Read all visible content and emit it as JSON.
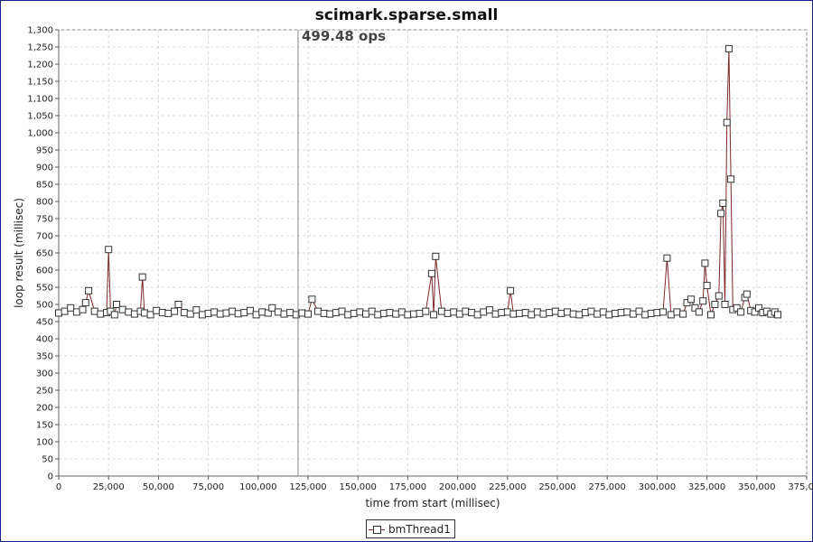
{
  "chart_data": {
    "type": "line",
    "title": "scimark.sparse.small",
    "xlabel": "time from start (millisec)",
    "ylabel": "loop result (millisec)",
    "xlim": [
      0,
      375000
    ],
    "ylim": [
      0,
      1300
    ],
    "x_ticks": [
      "0",
      "25,000",
      "50,000",
      "75,000",
      "100,000",
      "125,000",
      "150,000",
      "175,000",
      "200,000",
      "225,000",
      "250,000",
      "275,000",
      "300,000",
      "325,000",
      "350,000",
      "375,000"
    ],
    "y_ticks": [
      "0",
      "50",
      "100",
      "150",
      "200",
      "250",
      "300",
      "350",
      "400",
      "450",
      "500",
      "550",
      "600",
      "650",
      "700",
      "750",
      "800",
      "850",
      "900",
      "950",
      "1,000",
      "1,050",
      "1,100",
      "1,150",
      "1,200",
      "1,250",
      "1,300"
    ],
    "grid": true,
    "legend_position": "bottom",
    "marker_line": {
      "x": 120000,
      "label": "499.48 ops"
    },
    "series_color": "#7a2a2a",
    "series": [
      {
        "name": "bmThread1",
        "x": [
          0,
          3000,
          6000,
          9000,
          12000,
          13500,
          15000,
          18000,
          21000,
          24000,
          25000,
          26000,
          28000,
          29000,
          32000,
          35000,
          38000,
          41000,
          42000,
          43000,
          46000,
          49000,
          52000,
          55000,
          58000,
          60000,
          63000,
          66000,
          69000,
          72000,
          75000,
          78000,
          81000,
          84000,
          87000,
          90000,
          93000,
          96000,
          99000,
          102000,
          105000,
          107000,
          110000,
          113000,
          116000,
          119000,
          122000,
          125000,
          127000,
          130000,
          133000,
          136000,
          139000,
          142000,
          145000,
          148000,
          151000,
          154000,
          157000,
          160000,
          163000,
          166000,
          169000,
          172000,
          175000,
          178000,
          181000,
          184000,
          187000,
          188000,
          189000,
          192000,
          195000,
          198000,
          201000,
          204000,
          207000,
          210000,
          213000,
          216000,
          219000,
          222000,
          225000,
          226500,
          228000,
          231000,
          234000,
          237000,
          240000,
          243000,
          246000,
          249000,
          252000,
          255000,
          258000,
          261000,
          264000,
          267000,
          270000,
          273000,
          276000,
          279000,
          282000,
          285000,
          288000,
          291000,
          294000,
          297000,
          300000,
          303000,
          305000,
          307000,
          310000,
          313000,
          315000,
          317000,
          319000,
          321000,
          323000,
          324000,
          325000,
          327000,
          329000,
          331000,
          332000,
          333000,
          334000,
          335000,
          336000,
          337000,
          338000,
          340000,
          342000,
          344000,
          345000,
          347000,
          349000,
          351000,
          353000,
          355000,
          357000,
          359000,
          360500
        ],
        "y": [
          475,
          480,
          490,
          478,
          485,
          505,
          540,
          480,
          472,
          476,
          660,
          480,
          470,
          500,
          485,
          478,
          472,
          480,
          580,
          475,
          470,
          482,
          476,
          474,
          480,
          500,
          476,
          472,
          484,
          470,
          474,
          478,
          472,
          475,
          480,
          473,
          476,
          482,
          470,
          478,
          475,
          490,
          478,
          472,
          476,
          470,
          475,
          472,
          515,
          480,
          474,
          472,
          476,
          480,
          470,
          474,
          478,
          472,
          480,
          470,
          474,
          476,
          472,
          478,
          470,
          472,
          474,
          480,
          590,
          470,
          640,
          480,
          474,
          478,
          472,
          480,
          476,
          470,
          478,
          484,
          472,
          476,
          478,
          540,
          472,
          474,
          476,
          470,
          478,
          472,
          476,
          480,
          474,
          478,
          472,
          470,
          476,
          480,
          472,
          478,
          470,
          474,
          476,
          478,
          472,
          480,
          470,
          474,
          476,
          478,
          635,
          470,
          478,
          472,
          505,
          515,
          490,
          478,
          510,
          620,
          555,
          470,
          500,
          525,
          765,
          795,
          500,
          1030,
          1245,
          865,
          485,
          490,
          478,
          520,
          530,
          482,
          478,
          490,
          476,
          480,
          472,
          478,
          470
        ]
      }
    ]
  }
}
